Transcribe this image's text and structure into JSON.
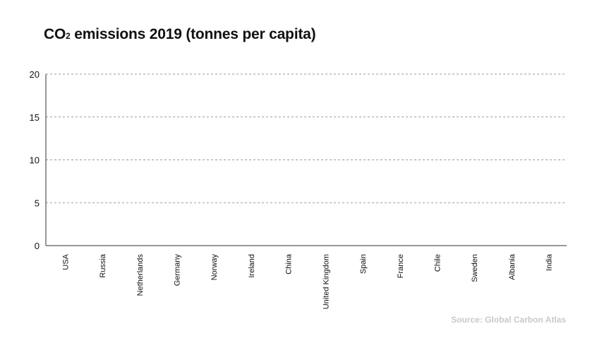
{
  "chart": {
    "title_main": "CO",
    "title_sub": "2",
    "title_rest": " emissions 2019 (tonnes per capita)",
    "source": "Source: Global Carbon Atlas"
  },
  "chart_data": {
    "type": "bar",
    "title": "CO₂ emissions 2019 (tonnes per capita)",
    "categories": [
      "USA",
      "Russia",
      "Netherlands",
      "Germany",
      "Norway",
      "Ireland",
      "China",
      "United Kingdom",
      "Spain",
      "France",
      "Chile",
      "Sweden",
      "Albania",
      "India"
    ],
    "values": [
      null,
      null,
      null,
      null,
      null,
      null,
      null,
      null,
      null,
      null,
      null,
      null,
      null,
      null
    ],
    "xlabel": "",
    "ylabel": "",
    "ylim": [
      0,
      20
    ],
    "yticks": [
      "0",
      "5",
      "10",
      "15",
      "20"
    ],
    "grid": true,
    "source": "Source: Global Carbon Atlas"
  }
}
